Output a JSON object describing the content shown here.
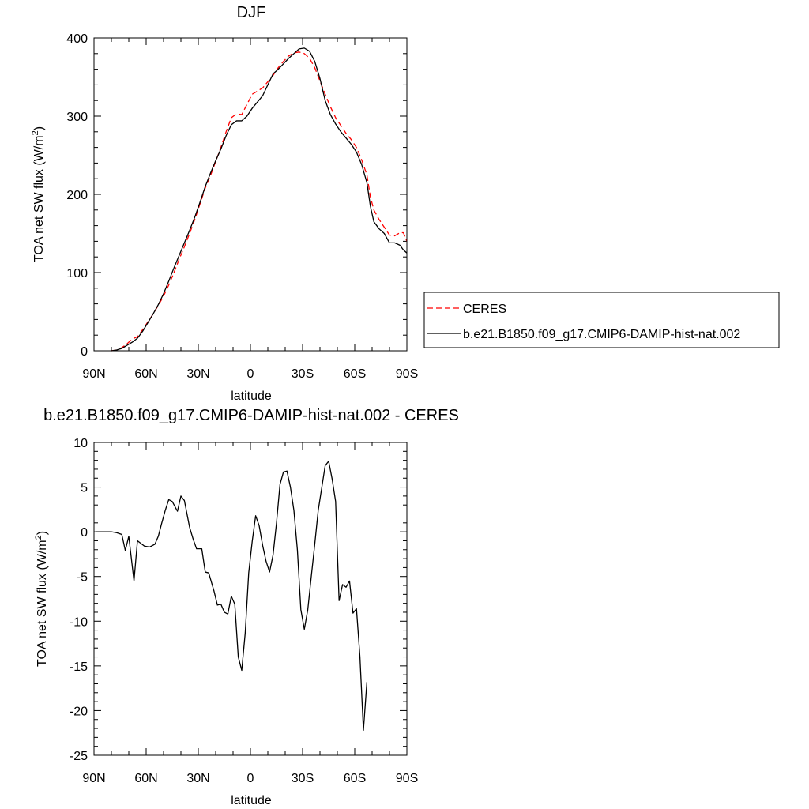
{
  "colors": {
    "model": "#000000",
    "obs": "#ff0000"
  },
  "chart_data": [
    {
      "type": "line",
      "title": "DJF",
      "xlabel": "latitude",
      "ylabel_main": "TOA net SW flux (W/m",
      "ylabel_sup": "2",
      "ylabel_close": ")",
      "xlim": [
        90,
        -90
      ],
      "ylim": [
        0,
        400
      ],
      "x_ticks": [
        {
          "value": 90,
          "label": "90N"
        },
        {
          "value": 60,
          "label": "60N"
        },
        {
          "value": 30,
          "label": "30N"
        },
        {
          "value": 0,
          "label": "0"
        },
        {
          "value": -30,
          "label": "30S"
        },
        {
          "value": -60,
          "label": "60S"
        },
        {
          "value": -90,
          "label": "90S"
        }
      ],
      "y_ticks": [
        {
          "value": 0,
          "label": "0"
        },
        {
          "value": 100,
          "label": "100"
        },
        {
          "value": 200,
          "label": "200"
        },
        {
          "value": 300,
          "label": "300"
        },
        {
          "value": 400,
          "label": "400"
        }
      ],
      "grid": false,
      "legend_position": "right",
      "series": [
        {
          "name": "CERES",
          "style": "dashed",
          "color": "#ff0000",
          "points": [
            [
              80,
              0
            ],
            [
              77,
              1
            ],
            [
              74,
              4
            ],
            [
              71,
              9
            ],
            [
              68,
              15
            ],
            [
              65,
              18
            ],
            [
              62,
              27
            ],
            [
              59,
              37
            ],
            [
              56,
              47
            ],
            [
              53,
              58
            ],
            [
              50,
              70
            ],
            [
              47,
              84
            ],
            [
              44,
              100
            ],
            [
              41,
              117
            ],
            [
              38,
              133
            ],
            [
              35,
              150
            ],
            [
              32,
              168
            ],
            [
              29,
              188
            ],
            [
              26,
              208
            ],
            [
              23,
              224
            ],
            [
              20,
              242
            ],
            [
              17,
              260
            ],
            [
              14,
              280
            ],
            [
              11,
              298
            ],
            [
              8,
              303
            ],
            [
              5,
              302
            ],
            [
              2,
              315
            ],
            [
              -1,
              328
            ],
            [
              -4,
              332
            ],
            [
              -7,
              336
            ],
            [
              -10,
              344
            ],
            [
              -13,
              352
            ],
            [
              -16,
              362
            ],
            [
              -19,
              370
            ],
            [
              -22,
              377
            ],
            [
              -25,
              381
            ],
            [
              -28,
              382
            ],
            [
              -31,
              380
            ],
            [
              -34,
              374
            ],
            [
              -37,
              362
            ],
            [
              -40,
              345
            ],
            [
              -43,
              328
            ],
            [
              -46,
              312
            ],
            [
              -49,
              298
            ],
            [
              -52,
              288
            ],
            [
              -55,
              278
            ],
            [
              -58,
              270
            ],
            [
              -61,
              260
            ],
            [
              -64,
              244
            ],
            [
              -67,
              225
            ],
            [
              -69,
              197
            ],
            [
              -71,
              180
            ],
            [
              -74,
              168
            ],
            [
              -77,
              158
            ],
            [
              -80,
              148
            ],
            [
              -83,
              147
            ],
            [
              -86,
              151
            ],
            [
              -88,
              151
            ],
            [
              -90,
              140
            ]
          ]
        },
        {
          "name": "b.e21.B1850.f09_g17.CMIP6-DAMIP-hist-nat.002",
          "style": "solid",
          "color": "#000000",
          "points": [
            [
              80,
              0
            ],
            [
              77,
              1
            ],
            [
              74,
              3
            ],
            [
              71,
              7
            ],
            [
              68,
              11
            ],
            [
              65,
              16
            ],
            [
              62,
              25
            ],
            [
              59,
              36
            ],
            [
              56,
              47
            ],
            [
              53,
              59
            ],
            [
              50,
              73
            ],
            [
              47,
              89
            ],
            [
              44,
              106
            ],
            [
              41,
              122
            ],
            [
              38,
              138
            ],
            [
              35,
              154
            ],
            [
              32,
              171
            ],
            [
              29,
              190
            ],
            [
              26,
              210
            ],
            [
              23,
              227
            ],
            [
              20,
              243
            ],
            [
              17,
              258
            ],
            [
              14,
              275
            ],
            [
              11,
              289
            ],
            [
              8,
              294
            ],
            [
              5,
              294
            ],
            [
              2,
              300
            ],
            [
              -1,
              310
            ],
            [
              -4,
              318
            ],
            [
              -7,
              326
            ],
            [
              -10,
              340
            ],
            [
              -13,
              354
            ],
            [
              -16,
              360
            ],
            [
              -19,
              367
            ],
            [
              -22,
              374
            ],
            [
              -25,
              380
            ],
            [
              -28,
              386
            ],
            [
              -31,
              387
            ],
            [
              -34,
              383
            ],
            [
              -37,
              370
            ],
            [
              -40,
              348
            ],
            [
              -43,
              320
            ],
            [
              -46,
              302
            ],
            [
              -49,
              290
            ],
            [
              -52,
              280
            ],
            [
              -55,
              272
            ],
            [
              -58,
              264
            ],
            [
              -61,
              254
            ],
            [
              -64,
              238
            ],
            [
              -67,
              215
            ],
            [
              -69,
              185
            ],
            [
              -71,
              165
            ],
            [
              -74,
              156
            ],
            [
              -77,
              150
            ],
            [
              -80,
              138
            ],
            [
              -83,
              138
            ],
            [
              -86,
              135
            ],
            [
              -88,
              129
            ],
            [
              -90,
              125
            ]
          ]
        }
      ]
    },
    {
      "type": "line",
      "title": "b.e21.B1850.f09_g17.CMIP6-DAMIP-hist-nat.002 - CERES",
      "xlabel": "latitude",
      "ylabel_main": "TOA net SW flux (W/m",
      "ylabel_sup": "2",
      "ylabel_close": ")",
      "xlim": [
        90,
        -90
      ],
      "ylim": [
        -25,
        10
      ],
      "x_ticks": [
        {
          "value": 90,
          "label": "90N"
        },
        {
          "value": 60,
          "label": "60N"
        },
        {
          "value": 30,
          "label": "30N"
        },
        {
          "value": 0,
          "label": "0"
        },
        {
          "value": -30,
          "label": "30S"
        },
        {
          "value": -60,
          "label": "60S"
        },
        {
          "value": -90,
          "label": "90S"
        }
      ],
      "y_ticks": [
        {
          "value": 10,
          "label": "10"
        },
        {
          "value": 5,
          "label": "5"
        },
        {
          "value": 0,
          "label": "0"
        },
        {
          "value": -5,
          "label": "-5"
        },
        {
          "value": -10,
          "label": "-10"
        },
        {
          "value": -15,
          "label": "-15"
        },
        {
          "value": -20,
          "label": "-20"
        },
        {
          "value": -25,
          "label": "-25"
        }
      ],
      "grid": false,
      "series": [
        {
          "style": "solid",
          "color": "#000000",
          "points": [
            [
              89,
              0
            ],
            [
              83,
              0
            ],
            [
              80,
              0
            ],
            [
              77,
              -0.1
            ],
            [
              74,
              -0.3
            ],
            [
              72,
              -2.1
            ],
            [
              70,
              -0.5
            ],
            [
              67,
              -5.5
            ],
            [
              65,
              -1.0
            ],
            [
              63,
              -1.3
            ],
            [
              61,
              -1.6
            ],
            [
              58,
              -1.7
            ],
            [
              55,
              -1.4
            ],
            [
              53,
              -0.5
            ],
            [
              51,
              1.0
            ],
            [
              49,
              2.4
            ],
            [
              47,
              3.6
            ],
            [
              45,
              3.4
            ],
            [
              42,
              2.3
            ],
            [
              40,
              4.0
            ],
            [
              38,
              3.5
            ],
            [
              35,
              0.5
            ],
            [
              33,
              -0.8
            ],
            [
              31,
              -1.9
            ],
            [
              28,
              -1.9
            ],
            [
              26,
              -4.5
            ],
            [
              24,
              -4.6
            ],
            [
              21,
              -6.6
            ],
            [
              19,
              -8.2
            ],
            [
              17,
              -8.1
            ],
            [
              15,
              -9.0
            ],
            [
              13,
              -9.2
            ],
            [
              11,
              -7.2
            ],
            [
              9,
              -8.1
            ],
            [
              7,
              -14.0
            ],
            [
              5,
              -15.5
            ],
            [
              3,
              -11.3
            ],
            [
              1,
              -4.6
            ],
            [
              -1,
              -1.1
            ],
            [
              -3,
              1.8
            ],
            [
              -5,
              0.7
            ],
            [
              -7,
              -1.5
            ],
            [
              -9,
              -3.3
            ],
            [
              -11,
              -4.5
            ],
            [
              -13,
              -2.6
            ],
            [
              -15,
              1.0
            ],
            [
              -17,
              5.3
            ],
            [
              -19,
              6.7
            ],
            [
              -21,
              6.8
            ],
            [
              -23,
              5.0
            ],
            [
              -25,
              2.4
            ],
            [
              -27,
              -2.0
            ],
            [
              -29,
              -8.7
            ],
            [
              -31,
              -10.9
            ],
            [
              -33,
              -8.7
            ],
            [
              -35,
              -5.0
            ],
            [
              -37,
              -1.4
            ],
            [
              -39,
              2.4
            ],
            [
              -41,
              4.9
            ],
            [
              -43,
              7.4
            ],
            [
              -45,
              7.9
            ],
            [
              -47,
              5.9
            ],
            [
              -49,
              3.4
            ],
            [
              -51,
              -7.7
            ],
            [
              -53,
              -5.9
            ],
            [
              -55,
              -6.2
            ],
            [
              -57,
              -5.5
            ],
            [
              -59,
              -9.1
            ],
            [
              -61,
              -8.6
            ],
            [
              -63,
              -14.0
            ],
            [
              -65,
              -22.2
            ],
            [
              -67,
              -16.8
            ]
          ]
        }
      ]
    }
  ]
}
